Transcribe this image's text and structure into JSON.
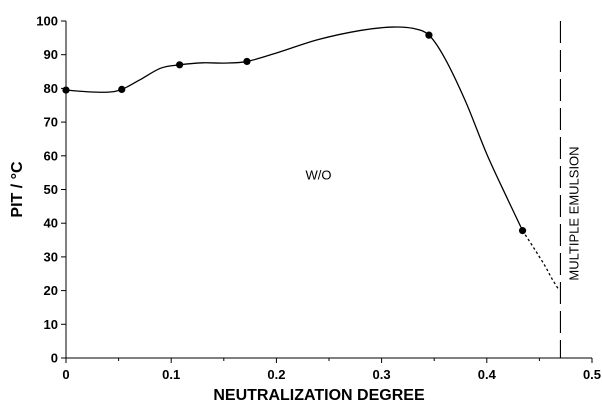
{
  "chart_data": {
    "type": "line",
    "title": "",
    "xlabel": "NEUTRALIZATION DEGREE",
    "ylabel": "PIT / °C",
    "xlim": [
      0,
      0.5
    ],
    "ylim": [
      0,
      100
    ],
    "x_ticks": [
      0,
      0.1,
      0.2,
      0.3,
      0.4,
      0.5
    ],
    "y_ticks": [
      0,
      10,
      20,
      30,
      40,
      50,
      60,
      70,
      80,
      90,
      100
    ],
    "x_tick_labels": [
      "0",
      "0.1",
      "0.2",
      "0.3",
      "0.4",
      "0.5"
    ],
    "y_tick_labels": [
      "0",
      "10",
      "20",
      "30",
      "40",
      "50",
      "60",
      "70",
      "80",
      "90",
      "100"
    ],
    "grid": false,
    "series": [
      {
        "points": [
          {
            "x": 0,
            "y": 79.5
          },
          {
            "x": 0.053,
            "y": 79.7
          },
          {
            "x": 0.108,
            "y": 87.0
          },
          {
            "x": 0.172,
            "y": 88.0
          },
          {
            "x": 0.345,
            "y": 95.8
          },
          {
            "x": 0.434,
            "y": 37.8
          }
        ],
        "curve": [
          [
            0,
            79.5
          ],
          [
            0.02,
            79.0
          ],
          [
            0.04,
            78.9
          ],
          [
            0.053,
            79.7
          ],
          [
            0.07,
            82.5
          ],
          [
            0.09,
            86.0
          ],
          [
            0.108,
            87.0
          ],
          [
            0.13,
            87.6
          ],
          [
            0.15,
            87.5
          ],
          [
            0.172,
            88.0
          ],
          [
            0.2,
            90.5
          ],
          [
            0.24,
            94.5
          ],
          [
            0.28,
            97.2
          ],
          [
            0.31,
            98.2
          ],
          [
            0.33,
            97.8
          ],
          [
            0.345,
            95.8
          ],
          [
            0.36,
            89.0
          ],
          [
            0.38,
            76.0
          ],
          [
            0.4,
            60.5
          ],
          [
            0.42,
            47.0
          ],
          [
            0.434,
            37.8
          ]
        ],
        "extrapolation": [
          [
            0.434,
            37.8
          ],
          [
            0.445,
            32.5
          ],
          [
            0.455,
            27.5
          ],
          [
            0.462,
            23.5
          ],
          [
            0.468,
            20.5
          ]
        ]
      }
    ],
    "boundary": {
      "x": 0.47,
      "label": "MULTIPLE EMULSION"
    },
    "annotations": [
      {
        "text": "W/O",
        "x": 0.24,
        "y": 53
      }
    ]
  }
}
